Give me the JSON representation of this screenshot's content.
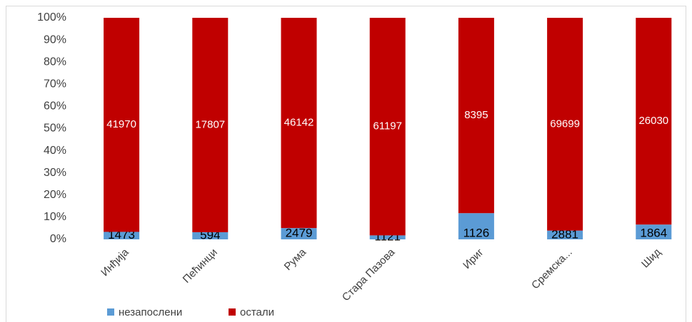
{
  "chart_data": {
    "type": "bar",
    "stacking": "percent",
    "categories": [
      "Инђија",
      "Пећинци",
      "Рума",
      "Стара Пазова",
      "Ириг",
      "Сремска...",
      "Шид"
    ],
    "series": [
      {
        "name": "незапослени",
        "color": "#5b9bd5",
        "values": [
          1473,
          594,
          2479,
          1121,
          1126,
          2881,
          1864
        ]
      },
      {
        "name": "остали",
        "color": "#c00000",
        "values": [
          41970,
          17807,
          46142,
          61197,
          8395,
          69699,
          26030
        ]
      }
    ],
    "ylim": [
      0,
      100
    ],
    "yticks": [
      {
        "value": 0,
        "label": "0%"
      },
      {
        "value": 10,
        "label": "10%"
      },
      {
        "value": 20,
        "label": "20%"
      },
      {
        "value": 30,
        "label": "30%"
      },
      {
        "value": 40,
        "label": "40%"
      },
      {
        "value": 50,
        "label": "50%"
      },
      {
        "value": 60,
        "label": "60%"
      },
      {
        "value": 70,
        "label": "70%"
      },
      {
        "value": 80,
        "label": "80%"
      },
      {
        "value": 90,
        "label": "90%"
      },
      {
        "value": 100,
        "label": "100%"
      }
    ],
    "grid": false,
    "legend": "bottom"
  }
}
